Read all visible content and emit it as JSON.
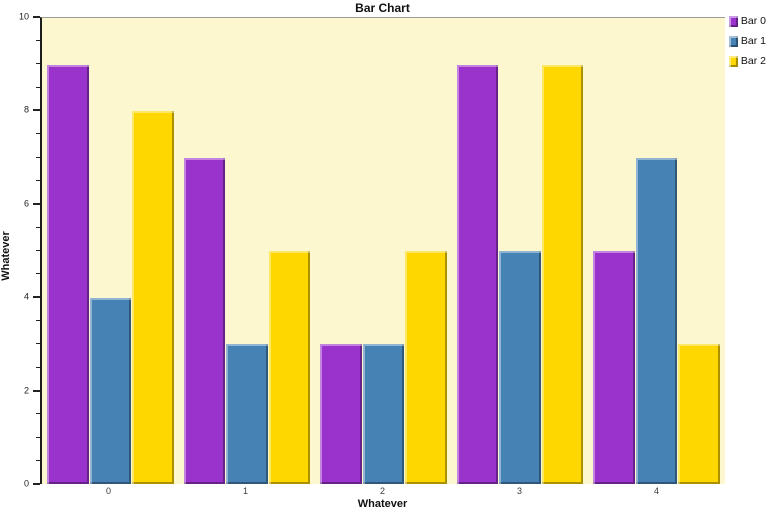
{
  "chart_data": {
    "type": "bar",
    "title": "Bar Chart",
    "xlabel": "Whatever",
    "ylabel": "Whatever",
    "categories": [
      "0",
      "1",
      "2",
      "3",
      "4"
    ],
    "series": [
      {
        "name": "Bar 0",
        "color": "#9933CC",
        "values": [
          9,
          7,
          3,
          9,
          5
        ]
      },
      {
        "name": "Bar 1",
        "color": "#4682B4",
        "values": [
          4,
          3,
          3,
          5,
          7
        ]
      },
      {
        "name": "Bar 2",
        "color": "#FFD700",
        "values": [
          8,
          5,
          5,
          9,
          3
        ]
      }
    ],
    "ylim": [
      0,
      10
    ],
    "y_major_step": 2,
    "y_minor_step": 0.5,
    "grid": false,
    "legend_position": "right-top",
    "plot_background": "#FCF7CE",
    "page_background": "#FFFFFF"
  }
}
